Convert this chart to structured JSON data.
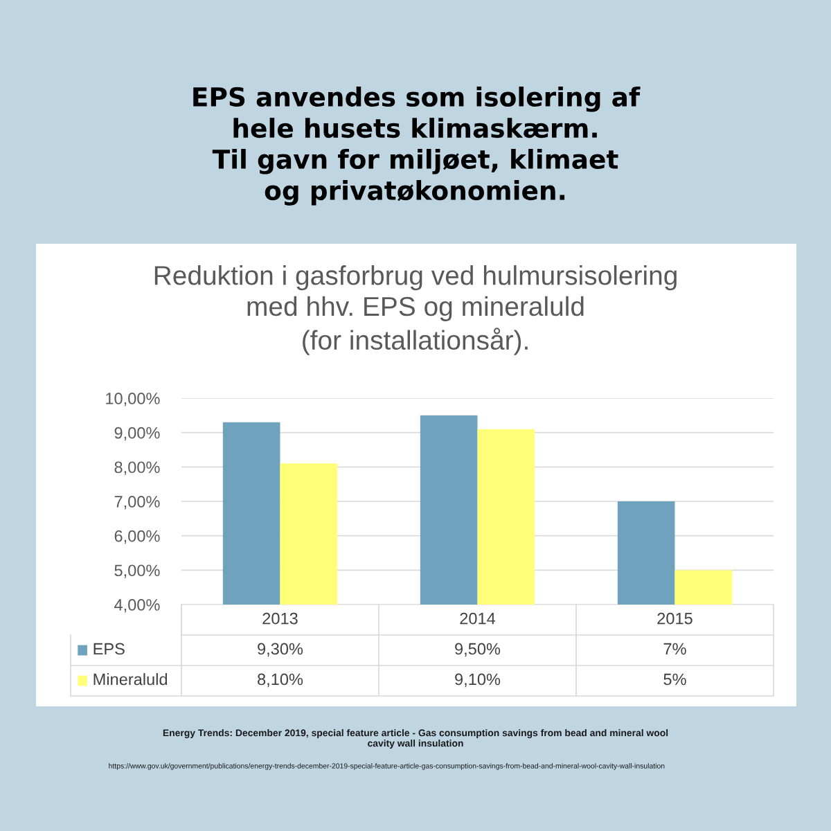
{
  "chart_data": {
    "type": "bar",
    "title": "EPS anvendes som isolering af\nhele husets klimaskærm.\nTil gavn for miljøet, klimaet\nog privatøkonomien.",
    "subtitle": "Reduktion i gasforbrug ved hulmursisolering\nmed hhv. EPS og mineraluld\n(for installationsår).",
    "categories": [
      "2013",
      "2014",
      "2015"
    ],
    "series": [
      {
        "name": "EPS",
        "color": "#6fa3bd",
        "values": [
          9.3,
          9.5,
          7
        ],
        "value_labels": [
          "9,30%",
          "9,50%",
          "7%"
        ]
      },
      {
        "name": "Mineraluld",
        "color": "#ffff7a",
        "values": [
          8.1,
          9.1,
          5
        ],
        "value_labels": [
          "8,10%",
          "9,10%",
          "5%"
        ]
      }
    ],
    "ylim": [
      4,
      10
    ],
    "yticks": [
      {
        "value": 4,
        "label": "4,00%"
      },
      {
        "value": 5,
        "label": "5,00%"
      },
      {
        "value": 6,
        "label": "6,00%"
      },
      {
        "value": 7,
        "label": "7,00%"
      },
      {
        "value": 8,
        "label": "8,00%"
      },
      {
        "value": 9,
        "label": "9,00%"
      },
      {
        "value": 10,
        "label": "10,00%"
      }
    ],
    "grid": "y",
    "legend": "bottom",
    "annotations": [
      "Energy Trends: December 2019, special feature article - Gas consumption savings from bead and mineral wool\ncavity wall insulation",
      "https://www.gov.uk/government/publications/energy-trends-december-2019-special-feature-article-gas-consumption-savings-from-bead-and-mineral-wool-cavity-wall-insulation"
    ]
  }
}
